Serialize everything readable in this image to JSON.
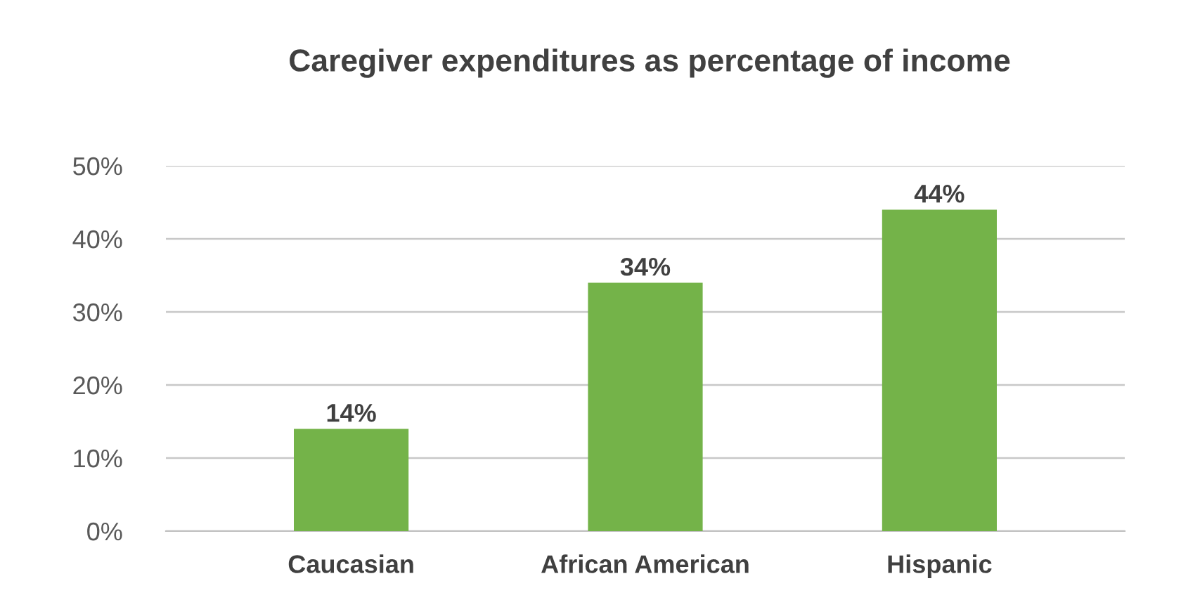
{
  "chart_data": {
    "type": "bar",
    "title": "Caregiver expenditures as percentage of income",
    "categories": [
      "Caucasian",
      "African American",
      "Hispanic"
    ],
    "values": [
      14,
      34,
      44
    ],
    "value_labels": [
      "14%",
      "34%",
      "44%"
    ],
    "color": "#74b349",
    "ylim": [
      0,
      50
    ],
    "yticks": [
      {
        "value": 0,
        "label": "0%"
      },
      {
        "value": 10,
        "label": "10%"
      },
      {
        "value": 20,
        "label": "20%"
      },
      {
        "value": 30,
        "label": "30%"
      },
      {
        "value": 40,
        "label": "40%"
      },
      {
        "value": 50,
        "label": "50%"
      }
    ],
    "grid": "y",
    "legend": false
  }
}
